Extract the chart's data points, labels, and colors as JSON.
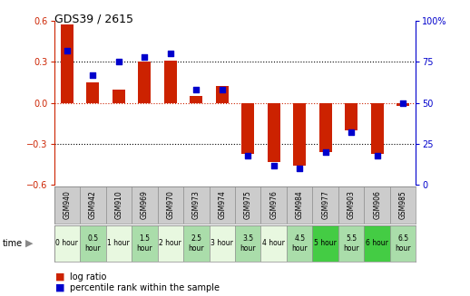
{
  "title": "GDS39 / 2615",
  "samples": [
    "GSM940",
    "GSM942",
    "GSM910",
    "GSM969",
    "GSM970",
    "GSM973",
    "GSM974",
    "GSM975",
    "GSM976",
    "GSM984",
    "GSM977",
    "GSM903",
    "GSM906",
    "GSM985"
  ],
  "time_labels": [
    "0 hour",
    "0.5\nhour",
    "1 hour",
    "1.5\nhour",
    "2 hour",
    "2.5\nhour",
    "3 hour",
    "3.5\nhour",
    "4 hour",
    "4.5\nhour",
    "5 hour",
    "5.5\nhour",
    "6 hour",
    "6.5\nhour"
  ],
  "log_ratio": [
    0.57,
    0.15,
    0.1,
    0.3,
    0.31,
    0.05,
    0.12,
    -0.37,
    -0.43,
    -0.46,
    -0.36,
    -0.2,
    -0.37,
    -0.02
  ],
  "percentile": [
    82,
    67,
    75,
    78,
    80,
    58,
    58,
    18,
    12,
    10,
    20,
    32,
    18,
    50
  ],
  "ylim": [
    -0.6,
    0.6
  ],
  "yticks_left": [
    -0.6,
    -0.3,
    0.0,
    0.3,
    0.6
  ],
  "yticks_right": [
    0,
    25,
    50,
    75,
    100
  ],
  "bar_color": "#cc2200",
  "dot_color": "#0000cc",
  "bg_color": "#ffffff",
  "gsm_bg": "#cccccc",
  "gsm_border": "#999999",
  "time_colors": [
    "#e8f8e0",
    "#aaddaa",
    "#e8f8e0",
    "#aaddaa",
    "#e8f8e0",
    "#aaddaa",
    "#e8f8e0",
    "#aaddaa",
    "#e8f8e0",
    "#aaddaa",
    "#44cc44",
    "#aaddaa",
    "#44cc44",
    "#aaddaa"
  ],
  "bar_width": 0.5,
  "dot_size": 22
}
